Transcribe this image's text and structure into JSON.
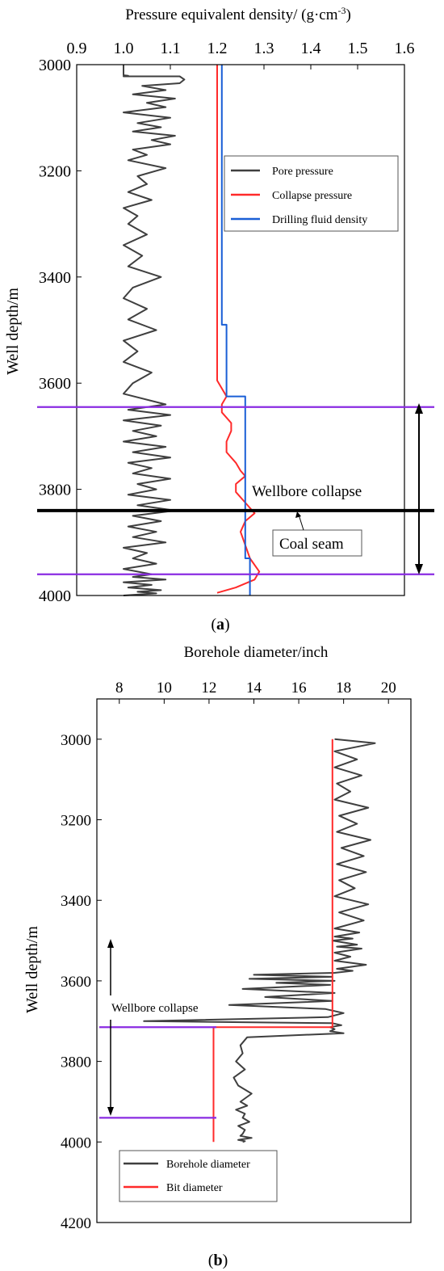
{
  "chart_data": [
    {
      "type": "line",
      "panel_label": "(a)",
      "xlabel": "Pressure equivalent density/ (g·cm",
      "xlabel_unit_sup": "-3",
      "xlabel_close": ")",
      "xaxis_position": "top",
      "ylabel": "Well depth/m",
      "xlim": [
        0.9,
        1.6
      ],
      "ylim": [
        4000,
        3000
      ],
      "xticks": [
        "0.9",
        "1.0",
        "1.1",
        "1.2",
        "1.3",
        "1.4",
        "1.5",
        "1.6"
      ],
      "yticks": [
        "3000",
        "3200",
        "3400",
        "3600",
        "3800",
        "4000"
      ],
      "legend": {
        "position": "upper-right",
        "entries": [
          {
            "label": "Pore pressure",
            "color": "#3f3f3f"
          },
          {
            "label": "Collapse pressure",
            "color": "#ff2a2a"
          },
          {
            "label": "Drilling fluid density",
            "color": "#1a5fd6"
          }
        ]
      },
      "series": [
        {
          "name": "Pore pressure",
          "color": "#3f3f3f",
          "x": [
            1.0,
            1.0,
            1.01,
            1.0,
            1.12,
            1.13,
            1.12,
            1.04,
            1.09,
            1.02,
            1.11,
            1.05,
            1.09,
            1.0,
            1.1,
            1.03,
            1.08,
            1.02,
            1.11,
            1.06,
            1.1,
            1.02,
            1.05,
            1.01,
            1.09,
            1.03,
            1.05,
            1.01,
            1.06,
            1.0,
            1.03,
            1.01,
            1.05,
            1.0,
            1.04,
            1.01,
            1.08,
            1.02,
            1.0,
            1.05,
            1.01,
            1.07,
            1.0,
            1.03,
            1.0,
            1.06,
            1.02,
            1.0,
            1.09,
            1.01,
            1.1,
            1.0,
            1.08,
            1.02,
            1.07,
            1.0,
            1.09,
            1.02,
            1.1,
            1.01,
            1.06,
            1.02,
            1.1,
            1.03,
            1.07,
            1.01,
            1.1,
            1.03,
            1.11,
            1.02,
            1.08,
            1.01,
            1.07,
            1.02,
            1.09,
            1.0,
            1.05,
            1.02,
            1.07,
            1.0,
            1.06,
            1.02,
            1.09,
            1.0,
            1.06,
            1.01,
            1.08,
            1.03,
            1.07,
            1.0
          ],
          "y": [
            3000,
            3020,
            3021,
            3022,
            3022,
            3028,
            3035,
            3040,
            3048,
            3056,
            3064,
            3072,
            3080,
            3090,
            3100,
            3110,
            3118,
            3126,
            3134,
            3142,
            3150,
            3160,
            3170,
            3180,
            3195,
            3210,
            3225,
            3240,
            3255,
            3270,
            3285,
            3300,
            3320,
            3340,
            3360,
            3380,
            3400,
            3420,
            3440,
            3460,
            3480,
            3500,
            3520,
            3540,
            3560,
            3580,
            3600,
            3620,
            3640,
            3650,
            3660,
            3670,
            3680,
            3690,
            3700,
            3710,
            3720,
            3730,
            3740,
            3750,
            3760,
            3770,
            3780,
            3790,
            3800,
            3810,
            3820,
            3830,
            3840,
            3850,
            3860,
            3870,
            3880,
            3890,
            3900,
            3910,
            3920,
            3930,
            3940,
            3950,
            3960,
            3965,
            3970,
            3975,
            3980,
            3985,
            3990,
            3993,
            3996,
            4000
          ]
        },
        {
          "name": "Collapse pressure",
          "color": "#ff2a2a",
          "x": [
            1.2,
            1.2,
            1.2,
            1.2,
            1.2,
            1.2,
            1.21,
            1.22,
            1.21,
            1.21,
            1.23,
            1.23,
            1.22,
            1.22,
            1.24,
            1.25,
            1.26,
            1.24,
            1.24,
            1.26,
            1.27,
            1.28,
            1.26,
            1.25,
            1.26,
            1.27,
            1.29,
            1.28,
            1.24,
            1.2
          ],
          "y": [
            3000,
            3200,
            3400,
            3500,
            3580,
            3595,
            3610,
            3625,
            3640,
            3655,
            3675,
            3690,
            3710,
            3730,
            3750,
            3765,
            3775,
            3790,
            3805,
            3825,
            3835,
            3845,
            3860,
            3880,
            3905,
            3930,
            3955,
            3970,
            3985,
            3995
          ]
        },
        {
          "name": "Drilling fluid density",
          "color": "#1a5fd6",
          "x": [
            1.21,
            1.21,
            1.22,
            1.22,
            1.26,
            1.26,
            1.27,
            1.27
          ],
          "y": [
            3000,
            3490,
            3490,
            3625,
            3625,
            3930,
            3930,
            4000
          ]
        }
      ],
      "annotations": [
        {
          "text": "Wellbore collapse"
        },
        {
          "text": "Coal seam"
        }
      ],
      "reference_lines": [
        {
          "type": "horizontal",
          "y": 3645,
          "color": "#8a2be2"
        },
        {
          "type": "horizontal",
          "y": 3960,
          "color": "#8a2be2"
        },
        {
          "type": "horizontal",
          "y": 3840,
          "color": "#000000"
        }
      ]
    },
    {
      "type": "line",
      "panel_label": "(b)",
      "xlabel": "Borehole diameter/inch",
      "xaxis_position": "top",
      "ylabel": "Well depth/m",
      "xlim": [
        7,
        21
      ],
      "ylim": [
        4200,
        2900
      ],
      "xticks": [
        "8",
        "10",
        "12",
        "14",
        "16",
        "18",
        "20"
      ],
      "yticks": [
        "3000",
        "3200",
        "3400",
        "3600",
        "3800",
        "4000",
        "4200"
      ],
      "legend": {
        "position": "lower-left",
        "entries": [
          {
            "label": "Borehole diameter",
            "color": "#3f3f3f"
          },
          {
            "label": "Bit diameter",
            "color": "#ff2a2a"
          }
        ]
      },
      "series": [
        {
          "name": "Borehole diameter",
          "color": "#3f3f3f",
          "x": [
            17.6,
            19.4,
            17.6,
            18.6,
            17.6,
            18.8,
            17.7,
            18.3,
            17.6,
            19.1,
            17.8,
            18.6,
            17.7,
            19.2,
            17.9,
            18.9,
            17.7,
            19.0,
            17.8,
            18.5,
            17.6,
            19.1,
            17.8,
            18.9,
            17.6,
            18.7,
            17.6,
            18.4,
            17.5,
            18.6,
            17.7,
            18.8,
            17.6,
            18.3,
            17.6,
            19.0,
            17.7,
            18.4,
            17.6,
            14.0,
            17.5,
            13.8,
            17.6,
            15.0,
            17.4,
            13.5,
            17.6,
            14.5,
            17.5,
            12.9,
            17.2,
            18.0,
            17.3,
            9.1,
            17.5,
            17.9,
            17.4,
            17.6,
            17.4,
            18.0,
            13.7,
            13.4,
            13.5,
            13.2,
            13.6,
            13.1,
            13.3,
            13.9,
            13.4,
            13.7,
            13.2,
            13.6,
            13.5,
            13.8,
            13.3,
            13.6,
            13.5,
            13.4,
            13.9,
            13.3,
            13.6,
            13.5
          ],
          "y": [
            3000,
            3010,
            3030,
            3050,
            3070,
            3090,
            3110,
            3130,
            3150,
            3170,
            3190,
            3210,
            3230,
            3250,
            3270,
            3290,
            3310,
            3330,
            3350,
            3370,
            3390,
            3410,
            3430,
            3450,
            3470,
            3480,
            3490,
            3495,
            3500,
            3510,
            3515,
            3520,
            3530,
            3540,
            3550,
            3560,
            3570,
            3575,
            3580,
            3585,
            3590,
            3595,
            3600,
            3605,
            3610,
            3620,
            3630,
            3640,
            3650,
            3660,
            3670,
            3680,
            3690,
            3700,
            3705,
            3710,
            3715,
            3720,
            3725,
            3730,
            3740,
            3760,
            3780,
            3800,
            3820,
            3840,
            3860,
            3880,
            3900,
            3910,
            3920,
            3930,
            3940,
            3950,
            3960,
            3970,
            3980,
            3985,
            3990,
            3995,
            3998,
            4000
          ]
        },
        {
          "name": "Bit diameter",
          "color": "#ff2a2a",
          "x": [
            17.5,
            17.5,
            17.5,
            12.2,
            12.2
          ],
          "y": [
            3000,
            3600,
            3715,
            3715,
            4000
          ]
        }
      ],
      "annotations": [
        {
          "text": "Wellbore collapse"
        }
      ],
      "reference_lines": [
        {
          "type": "horizontal",
          "y": 3715,
          "color": "#8a2be2"
        },
        {
          "type": "horizontal",
          "y": 3940,
          "color": "#8a2be2"
        }
      ]
    }
  ]
}
